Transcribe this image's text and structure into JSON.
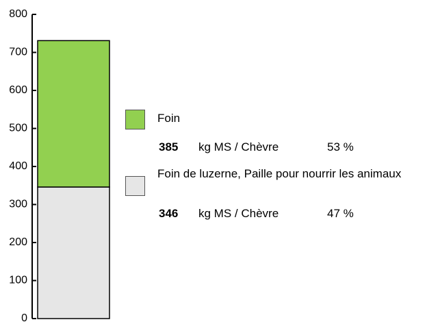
{
  "chart_data": {
    "type": "stacked_bar",
    "series": [
      {
        "name": "Foin",
        "color": "#92d050",
        "values": [
          385
        ],
        "unit": "kg MS / Chèvre",
        "share_label": "53 %"
      },
      {
        "name": "Foin de luzerne, Paille pour nourrir les animaux",
        "color": "#e6e6e6",
        "values": [
          346
        ],
        "unit": "kg MS / Chèvre",
        "share_label": "47 %"
      }
    ],
    "ylim": [
      0,
      800
    ],
    "yticks": [
      0,
      100,
      200,
      300,
      400,
      500,
      600,
      700,
      800
    ]
  }
}
